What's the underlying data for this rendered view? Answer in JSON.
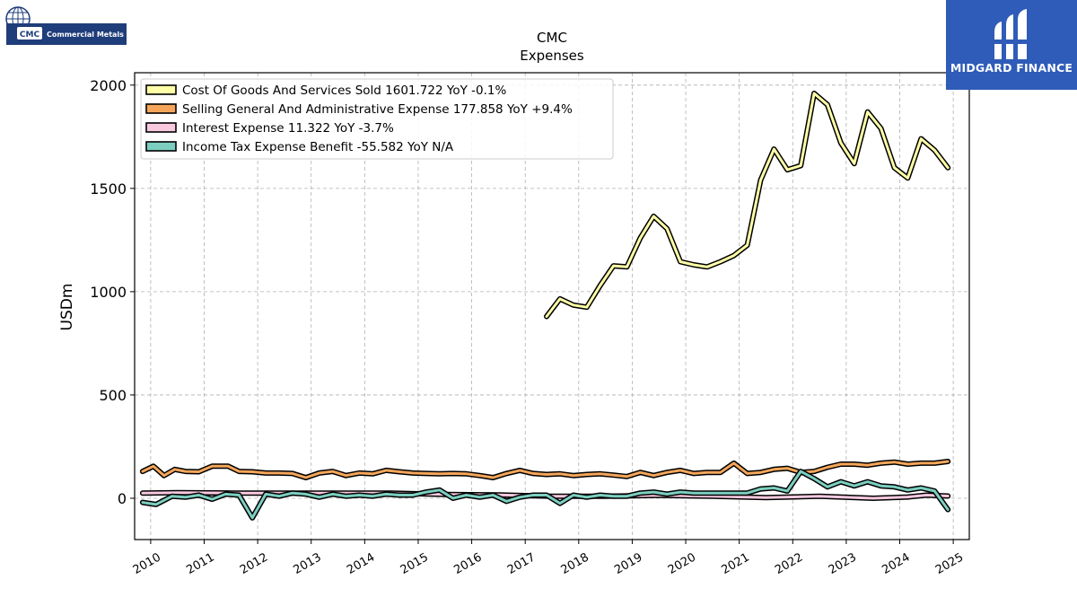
{
  "branding": {
    "company_logo_text": "Commercial Metals",
    "company_logo_ticker": "CMC",
    "sponsor_logo_text": "MIDGARD FINANCE"
  },
  "chart_data": {
    "type": "line",
    "title": "CMC",
    "subtitle": "Expenses",
    "xlabel": "",
    "ylabel": "USDm",
    "xlim": [
      2009.7,
      2025.3
    ],
    "ylim": [
      -200,
      2060
    ],
    "xticks": [
      "2010",
      "2011",
      "2012",
      "2013",
      "2014",
      "2015",
      "2016",
      "2017",
      "2018",
      "2019",
      "2020",
      "2021",
      "2022",
      "2023",
      "2024",
      "2025"
    ],
    "yticks": [
      "0",
      "500",
      "1000",
      "1500",
      "2000"
    ],
    "grid": true,
    "legend_position": "upper-left",
    "series": [
      {
        "name": "Cost Of Goods And Services Sold",
        "legend": "Cost Of Goods And Services Sold  1601.722 YoY -0.1%",
        "color": "#ffffa8",
        "x": [
          2017.4,
          2017.65,
          2017.9,
          2018.15,
          2018.4,
          2018.65,
          2018.9,
          2019.15,
          2019.4,
          2019.65,
          2019.9,
          2020.15,
          2020.4,
          2020.65,
          2020.9,
          2021.15,
          2021.4,
          2021.65,
          2021.9,
          2022.15,
          2022.4,
          2022.65,
          2022.9,
          2023.15,
          2023.4,
          2023.65,
          2023.9,
          2024.15,
          2024.4,
          2024.65,
          2024.9
        ],
        "y": [
          880,
          965,
          935,
          925,
          1030,
          1125,
          1120,
          1260,
          1365,
          1305,
          1145,
          1130,
          1120,
          1145,
          1175,
          1225,
          1540,
          1690,
          1590,
          1610,
          1960,
          1905,
          1720,
          1620,
          1870,
          1790,
          1600,
          1550,
          1740,
          1685,
          1600
        ]
      },
      {
        "name": "Selling General And Administrative Expense",
        "legend": "Selling General And Administrative Expense  177.858 YoY +9.4%",
        "color": "#f5a65b",
        "x": [
          2009.85,
          2010.05,
          2010.25,
          2010.45,
          2010.65,
          2010.9,
          2011.15,
          2011.45,
          2011.65,
          2011.9,
          2012.15,
          2012.4,
          2012.65,
          2012.9,
          2013.15,
          2013.4,
          2013.65,
          2013.9,
          2014.15,
          2014.4,
          2014.65,
          2014.9,
          2015.15,
          2015.4,
          2015.65,
          2015.9,
          2016.15,
          2016.4,
          2016.65,
          2016.9,
          2017.15,
          2017.4,
          2017.65,
          2017.9,
          2018.15,
          2018.4,
          2018.65,
          2018.9,
          2019.15,
          2019.4,
          2019.65,
          2019.9,
          2020.15,
          2020.4,
          2020.65,
          2020.9,
          2021.15,
          2021.4,
          2021.65,
          2021.9,
          2022.15,
          2022.4,
          2022.65,
          2022.9,
          2023.15,
          2023.4,
          2023.65,
          2023.9,
          2024.15,
          2024.4,
          2024.65,
          2024.9
        ],
        "y": [
          130,
          155,
          110,
          140,
          130,
          128,
          155,
          155,
          130,
          128,
          122,
          122,
          120,
          100,
          122,
          130,
          110,
          122,
          118,
          135,
          128,
          122,
          120,
          118,
          120,
          118,
          110,
          100,
          120,
          135,
          120,
          115,
          118,
          110,
          115,
          118,
          112,
          105,
          125,
          110,
          125,
          135,
          120,
          125,
          125,
          170,
          120,
          125,
          140,
          145,
          125,
          130,
          150,
          165,
          165,
          160,
          170,
          175,
          165,
          170,
          170,
          178
        ]
      },
      {
        "name": "Interest Expense",
        "legend": "Interest Expense  11.322 YoY -3.7%",
        "color": "#f9c9e0",
        "x": [
          2009.85,
          2010.5,
          2011.5,
          2012.5,
          2013.5,
          2014.5,
          2015.5,
          2016.5,
          2017.5,
          2018.5,
          2019.5,
          2020.5,
          2021.5,
          2022.5,
          2023.5,
          2024.15,
          2024.5,
          2024.9
        ],
        "y": [
          25,
          27,
          25,
          25,
          25,
          25,
          18,
          16,
          10,
          10,
          14,
          10,
          3,
          10,
          0,
          6,
          15,
          11
        ]
      },
      {
        "name": "Income Tax Expense Benefit",
        "legend": "Income Tax Expense Benefit  -55.582 YoY N/A",
        "color": "#7ccfc0",
        "x": [
          2009.85,
          2010.1,
          2010.4,
          2010.65,
          2010.9,
          2011.15,
          2011.4,
          2011.65,
          2011.9,
          2012.15,
          2012.4,
          2012.65,
          2012.9,
          2013.15,
          2013.4,
          2013.65,
          2013.9,
          2014.15,
          2014.4,
          2014.65,
          2014.9,
          2015.15,
          2015.4,
          2015.65,
          2015.9,
          2016.15,
          2016.4,
          2016.65,
          2016.9,
          2017.15,
          2017.4,
          2017.65,
          2017.9,
          2018.15,
          2018.4,
          2018.65,
          2018.9,
          2019.15,
          2019.4,
          2019.65,
          2019.9,
          2020.15,
          2020.4,
          2020.65,
          2020.9,
          2021.15,
          2021.4,
          2021.65,
          2021.9,
          2022.15,
          2022.4,
          2022.65,
          2022.9,
          2023.15,
          2023.4,
          2023.65,
          2023.9,
          2024.15,
          2024.4,
          2024.65,
          2024.9
        ],
        "y": [
          -20,
          -30,
          10,
          5,
          15,
          -5,
          20,
          15,
          -95,
          20,
          10,
          25,
          20,
          5,
          20,
          10,
          15,
          10,
          20,
          15,
          15,
          30,
          40,
          0,
          15,
          5,
          15,
          -15,
          5,
          15,
          15,
          -25,
          15,
          5,
          15,
          10,
          10,
          25,
          30,
          20,
          30,
          25,
          25,
          25,
          25,
          25,
          45,
          50,
          35,
          130,
          95,
          55,
          80,
          60,
          80,
          60,
          55,
          40,
          50,
          35,
          -55
        ]
      }
    ]
  }
}
